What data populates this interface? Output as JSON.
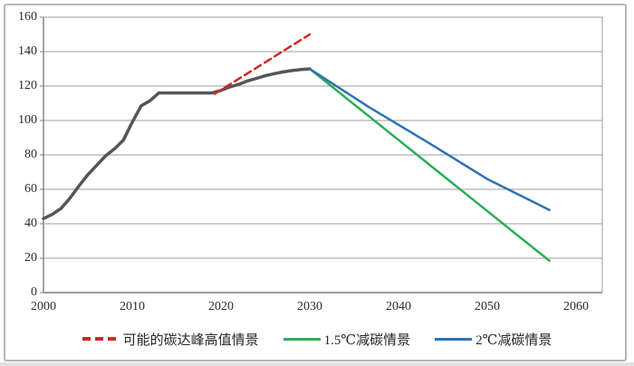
{
  "chart_data": {
    "type": "line",
    "title": "",
    "xlabel": "",
    "ylabel": "",
    "xlim": [
      2000,
      2063
    ],
    "ylim": [
      0,
      160
    ],
    "xticks": [
      2000,
      2010,
      2020,
      2030,
      2040,
      2050,
      2060
    ],
    "yticks": [
      0,
      20,
      40,
      60,
      80,
      100,
      120,
      140,
      160
    ],
    "grid": "horizontal",
    "legend_position": "bottom-center",
    "colors": {
      "historical_line": "#565656",
      "peak_scenario_line": "#d0291e",
      "scenario_1p5_line": "#2cae58",
      "scenario_2_line": "#2e71b4",
      "gridline": "#9d9d9d",
      "axis": "#7d7d7d",
      "frame_border": "#b7b7b7"
    },
    "series": [
      {
        "id": "historical",
        "label": "",
        "in_legend": false,
        "color": "#565656",
        "style": "solid",
        "width": 3.5,
        "points": [
          [
            2000,
            43
          ],
          [
            2001,
            45.5
          ],
          [
            2002,
            49
          ],
          [
            2003,
            55
          ],
          [
            2004,
            62
          ],
          [
            2005,
            68.5
          ],
          [
            2006,
            74
          ],
          [
            2007,
            79.5
          ],
          [
            2008,
            83.5
          ],
          [
            2009,
            88.5
          ],
          [
            2010,
            99
          ],
          [
            2011,
            108.5
          ],
          [
            2012,
            111.5
          ],
          [
            2013,
            116
          ],
          [
            2014,
            116
          ],
          [
            2015,
            116
          ],
          [
            2016,
            116
          ],
          [
            2017,
            116
          ],
          [
            2018,
            116
          ],
          [
            2019,
            116
          ],
          [
            2020,
            117.5
          ],
          [
            2021,
            119.5
          ],
          [
            2022,
            121
          ],
          [
            2023,
            123
          ],
          [
            2024,
            124.5
          ],
          [
            2025,
            126
          ],
          [
            2026,
            127.2
          ],
          [
            2027,
            128.2
          ],
          [
            2028,
            129
          ],
          [
            2029,
            129.6
          ],
          [
            2030,
            130
          ]
        ]
      },
      {
        "id": "peak-high-scenario",
        "label": "可能的碳达峰高值情景",
        "in_legend": true,
        "color": "#d0291e",
        "style": "dashed",
        "width": 2.5,
        "points": [
          [
            2019.3,
            115.5
          ],
          [
            2030,
            150
          ]
        ]
      },
      {
        "id": "scenario-1p5c",
        "label": "1.5℃减碳情景",
        "in_legend": true,
        "color": "#2cae58",
        "style": "solid",
        "width": 2.5,
        "points": [
          [
            2030,
            130
          ],
          [
            2057,
            18.5
          ]
        ]
      },
      {
        "id": "scenario-2c",
        "label": "2℃减碳情景",
        "in_legend": true,
        "color": "#2e71b4",
        "style": "solid",
        "width": 2.5,
        "points": [
          [
            2030,
            130
          ],
          [
            2036.6,
            108
          ],
          [
            2043.4,
            87
          ],
          [
            2050,
            66
          ],
          [
            2057,
            48
          ]
        ]
      }
    ]
  }
}
